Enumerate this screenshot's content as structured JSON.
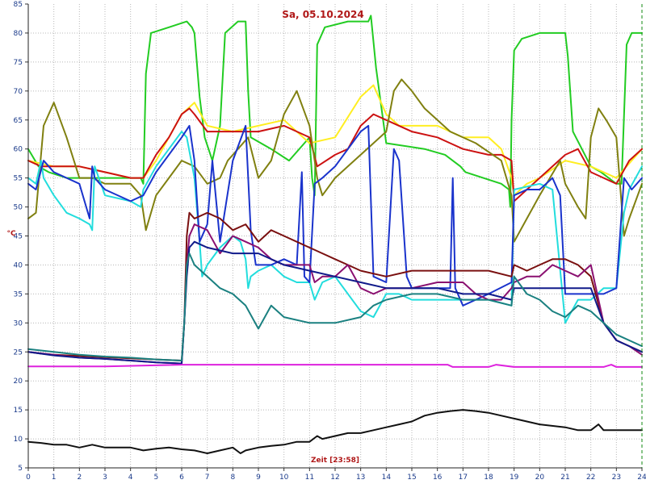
{
  "chart_data": {
    "type": "line",
    "title": "Sa, 05.10.2024",
    "xlabel": "Zeit [23:58]",
    "ylabel": "°C",
    "xlim": [
      0,
      24
    ],
    "ylim": [
      5,
      85
    ],
    "x_ticks": [
      "0",
      "1",
      "2",
      "3",
      "4",
      "5",
      "6",
      "7",
      "8",
      "9",
      "10",
      "11",
      "12",
      "13",
      "14",
      "15",
      "16",
      "17",
      "18",
      "19",
      "20",
      "21",
      "22",
      "23",
      "24"
    ],
    "y_ticks": [
      "5",
      "10",
      "15",
      "20",
      "25",
      "30",
      "35",
      "40",
      "45",
      "50",
      "55",
      "60",
      "65",
      "70",
      "75",
      "80",
      "85"
    ],
    "grid": true,
    "legend": "none",
    "series": [
      {
        "color": "#22cc22",
        "x": [
          0,
          0.4,
          0.8,
          1.5,
          2.5,
          3.5,
          4.4,
          4.5,
          4.6,
          4.8,
          5.5,
          6.2,
          6.4,
          6.5,
          6.7,
          6.9,
          7.2,
          7.5,
          7.7,
          8.2,
          8.5,
          8.6,
          8.7,
          9.5,
          10.2,
          11.0,
          11.1,
          11.2,
          11.3,
          11.6,
          12.5,
          13.3,
          13.4,
          13.6,
          14.0,
          15.5,
          16.3,
          16.9,
          17.1,
          18.5,
          18.8,
          18.85,
          18.9,
          19.0,
          19.3,
          20.0,
          20.9,
          21.0,
          21.1,
          21.3,
          22.0,
          22.4,
          23.0,
          23.2,
          23.4,
          23.6,
          24
        ],
        "y": [
          60,
          57,
          56,
          55,
          55,
          55,
          55,
          54,
          73,
          80,
          81,
          82,
          81,
          80,
          69,
          62,
          58,
          64,
          80,
          82,
          82,
          70,
          62,
          60,
          58,
          62,
          55,
          52,
          78,
          81,
          82,
          82,
          83,
          74,
          61,
          60,
          59,
          57,
          56,
          54,
          53,
          50,
          65,
          77,
          79,
          80,
          80,
          80,
          76,
          63,
          57,
          56,
          54,
          54,
          78,
          80,
          80
        ]
      },
      {
        "color": "#ffee22",
        "x": [
          0,
          1,
          2,
          3,
          4,
          4.5,
          5,
          5.5,
          6.0,
          6.5,
          7.0,
          8.0,
          9.0,
          10.0,
          11.0,
          12.0,
          13.0,
          13.5,
          14.0,
          14.5,
          16.0,
          17.0,
          18.0,
          18.5,
          18.9,
          19.0,
          19.5,
          20.0,
          21.0,
          22.0,
          23.0,
          24
        ],
        "y": [
          58,
          57,
          57,
          56,
          55,
          55,
          58,
          62,
          66,
          68,
          64,
          63,
          64,
          65,
          61,
          62,
          69,
          71,
          66,
          64,
          64,
          62,
          62,
          60,
          55,
          52,
          54,
          55,
          58,
          57,
          55,
          60
        ]
      },
      {
        "color": "#cc1111",
        "x": [
          0,
          0.5,
          1,
          2,
          3,
          4,
          4.5,
          5,
          5.5,
          6.0,
          6.3,
          6.5,
          7,
          8,
          9,
          10,
          11,
          11.3,
          12,
          12.5,
          13,
          13.5,
          14,
          15,
          16,
          16.5,
          17,
          18,
          18.5,
          18.9,
          19.0,
          19.5,
          20,
          21,
          21.5,
          22,
          23,
          23.5,
          24
        ],
        "y": [
          58,
          57,
          57,
          57,
          56,
          55,
          55,
          59,
          62,
          66,
          67,
          66,
          63,
          63,
          63,
          64,
          62,
          57,
          59,
          60,
          64,
          66,
          65,
          63,
          62,
          61,
          60,
          59,
          59,
          58,
          51,
          53,
          55,
          59,
          60,
          56,
          54,
          58,
          60
        ]
      },
      {
        "color": "#808010",
        "x": [
          0,
          0.3,
          0.6,
          1.0,
          1.5,
          2.0,
          2.5,
          3.0,
          4.0,
          4.4,
          4.6,
          5.0,
          5.5,
          6.0,
          6.5,
          7.0,
          7.5,
          7.8,
          8.2,
          8.6,
          9.0,
          9.5,
          10.0,
          10.5,
          11.0,
          11.3,
          11.5,
          12.0,
          12.5,
          13.5,
          14.0,
          14.3,
          14.6,
          15.0,
          15.5,
          16.5,
          17.5,
          18.5,
          18.9,
          19.0,
          19.5,
          20.0,
          20.4,
          20.8,
          21.0,
          21.5,
          21.8,
          22.0,
          22.3,
          22.6,
          23.0,
          23.3,
          23.5,
          24
        ],
        "y": [
          48,
          49,
          64,
          68,
          62,
          55,
          55,
          54,
          54,
          52,
          46,
          52,
          55,
          58,
          57,
          54,
          55,
          58,
          60,
          62,
          55,
          58,
          66,
          70,
          64,
          55,
          52,
          55,
          57,
          61,
          63,
          70,
          72,
          70,
          67,
          63,
          61,
          58,
          52,
          44,
          48,
          52,
          55,
          58,
          54,
          50,
          48,
          62,
          67,
          65,
          62,
          45,
          48,
          54
        ]
      },
      {
        "color": "#22dddd",
        "x": [
          0,
          0.3,
          0.4,
          0.5,
          0.6,
          1.0,
          1.5,
          2.0,
          2.4,
          2.5,
          2.6,
          3.0,
          4.0,
          4.4,
          4.5,
          5.0,
          5.5,
          6.0,
          6.2,
          6.5,
          6.7,
          6.8,
          7.0,
          7.5,
          8.0,
          8.3,
          8.5,
          8.6,
          8.7,
          9.0,
          9.5,
          10.0,
          10.5,
          11.0,
          11.2,
          11.5,
          12.0,
          13.0,
          13.5,
          14.0,
          14.5,
          15.0,
          16.0,
          17.0,
          18.0,
          18.9,
          19.0,
          20.0,
          20.5,
          21.0,
          21.5,
          22.0,
          22.5,
          23.0,
          23.3,
          23.5,
          24
        ],
        "y": [
          55,
          54,
          56,
          58,
          55,
          52,
          49,
          48,
          47,
          46,
          57,
          52,
          51,
          50,
          53,
          57,
          60,
          63,
          62,
          55,
          44,
          38,
          40,
          43,
          45,
          44,
          41,
          36,
          38,
          39,
          40,
          38,
          37,
          37,
          34,
          37,
          38,
          32,
          31,
          35,
          35,
          34,
          34,
          34,
          34,
          33,
          53,
          54,
          53,
          30,
          34,
          34,
          36,
          36,
          49,
          53,
          57
        ]
      },
      {
        "color": "#1a33cc",
        "x": [
          0,
          0.3,
          0.6,
          1.0,
          2.0,
          2.4,
          2.5,
          2.6,
          3.0,
          4.0,
          4.5,
          5.0,
          6.0,
          6.3,
          6.5,
          6.7,
          7.0,
          7.2,
          7.5,
          8.0,
          8.5,
          8.7,
          8.9,
          9.5,
          10.0,
          10.5,
          10.7,
          10.8,
          11.0,
          11.2,
          11.5,
          12.0,
          13.0,
          13.3,
          13.5,
          14.0,
          14.3,
          14.5,
          14.8,
          15.0,
          16.0,
          16.5,
          16.6,
          16.7,
          17.0,
          18.0,
          18.9,
          19.0,
          19.5,
          20.0,
          20.5,
          20.8,
          21.0,
          21.5,
          22.0,
          22.5,
          23.0,
          23.3,
          23.6,
          24
        ],
        "y": [
          54,
          53,
          58,
          56,
          54,
          48,
          57,
          55,
          53,
          51,
          52,
          56,
          62,
          64,
          58,
          44,
          47,
          58,
          44,
          58,
          64,
          46,
          40,
          40,
          41,
          40,
          56,
          38,
          37,
          54,
          55,
          57,
          63,
          64,
          38,
          37,
          60,
          58,
          38,
          36,
          36,
          36,
          55,
          36,
          33,
          35,
          37,
          52,
          53,
          53,
          55,
          52,
          35,
          35,
          35,
          35,
          36,
          55,
          53,
          55
        ]
      },
      {
        "color": "#7a1010",
        "x": [
          0,
          0.5,
          1,
          2,
          3,
          4,
          5,
          6.0,
          6.1,
          6.2,
          6.3,
          6.5,
          7.0,
          7.5,
          8.0,
          8.5,
          9.0,
          9.5,
          10.0,
          10.5,
          11.0,
          11.5,
          12.0,
          12.5,
          13.0,
          14.0,
          15.0,
          16.0,
          17.0,
          18.0,
          18.9,
          19.0,
          19.5,
          20.0,
          20.5,
          21.0,
          21.5,
          22.0,
          22.5,
          23.0,
          23.5,
          24
        ],
        "y": [
          25,
          24.7,
          24.5,
          24.3,
          24.1,
          23.9,
          23.7,
          23.5,
          30,
          45,
          49,
          48,
          49,
          48,
          46,
          47,
          44,
          46,
          45,
          44,
          43,
          42,
          41,
          40,
          39,
          38,
          39,
          39,
          39,
          39,
          38,
          40,
          39,
          40,
          41,
          41,
          40,
          38,
          30,
          27,
          26,
          25
        ]
      },
      {
        "color": "#8a1070",
        "x": [
          0,
          1,
          2,
          3,
          4,
          5,
          6.0,
          6.1,
          6.2,
          6.3,
          6.5,
          7.0,
          7.5,
          8.0,
          8.5,
          9.0,
          9.5,
          10.0,
          10.5,
          11.0,
          11.2,
          11.5,
          12.0,
          12.5,
          13.0,
          13.5,
          14.0,
          15.0,
          16.0,
          17.0,
          17.5,
          18.0,
          18.5,
          18.9,
          19.0,
          19.5,
          20.0,
          20.5,
          21.0,
          21.5,
          22.0,
          22.5,
          23.0,
          23.5,
          24
        ],
        "y": [
          25,
          24.5,
          24,
          23.8,
          23.5,
          23.2,
          23,
          30,
          40,
          45,
          47,
          46,
          42,
          45,
          44,
          43,
          41,
          40,
          40,
          40,
          37,
          38,
          38,
          40,
          36,
          35,
          36,
          36,
          37,
          37,
          35,
          34,
          34,
          36,
          37,
          38,
          38,
          40,
          39,
          38,
          40,
          30,
          27,
          26,
          24.5
        ]
      },
      {
        "color": "#101a8a",
        "x": [
          0,
          1,
          2,
          3,
          4,
          5,
          6.0,
          6.1,
          6.2,
          6.3,
          6.5,
          7.0,
          8.0,
          9.0,
          10.0,
          11.0,
          12.0,
          13.0,
          14.0,
          15.0,
          16.0,
          17.0,
          18.0,
          18.9,
          19.0,
          20.0,
          21.0,
          22.0,
          22.5,
          23.0,
          23.5,
          24
        ],
        "y": [
          25,
          24.4,
          24,
          23.8,
          23.5,
          23.2,
          23,
          30,
          38,
          43,
          44,
          43,
          42,
          42,
          40,
          39,
          38,
          37,
          36,
          36,
          36,
          35,
          35,
          34,
          36,
          36,
          36,
          36,
          30,
          27,
          26,
          25
        ]
      },
      {
        "color": "#1a8080",
        "x": [
          0,
          1,
          2,
          3,
          4,
          5,
          6.0,
          6.1,
          6.2,
          6.3,
          6.5,
          7.0,
          7.5,
          8.0,
          8.5,
          9.0,
          9.5,
          10.0,
          11.0,
          12.0,
          13.0,
          13.5,
          14.0,
          15.0,
          16.0,
          17.0,
          18.0,
          18.9,
          19.0,
          19.5,
          20.0,
          20.5,
          21.0,
          21.5,
          22.0,
          23.0,
          24
        ],
        "y": [
          25.5,
          25,
          24.5,
          24.2,
          24,
          23.7,
          23.5,
          30,
          40,
          42,
          40,
          38,
          36,
          35,
          33,
          29,
          33,
          31,
          30,
          30,
          31,
          33,
          34,
          35,
          35,
          34,
          34,
          33,
          38,
          35,
          34,
          32,
          31,
          33,
          32,
          28,
          26
        ]
      },
      {
        "color": "#dd22dd",
        "x": [
          0,
          3,
          6,
          9,
          12,
          15,
          16.4,
          16.6,
          17.5,
          18,
          18.3,
          19,
          21,
          22.5,
          22.8,
          23,
          23.5,
          24
        ],
        "y": [
          22.5,
          22.5,
          22.8,
          22.8,
          22.8,
          22.8,
          22.8,
          22.4,
          22.4,
          22.4,
          22.8,
          22.4,
          22.4,
          22.4,
          22.8,
          22.4,
          22.4,
          22.4
        ]
      },
      {
        "color": "#111111",
        "x": [
          0,
          0.5,
          1,
          1.5,
          2,
          2.5,
          3,
          3.5,
          4,
          4.5,
          5,
          5.5,
          6,
          6.5,
          7,
          7.5,
          8,
          8.3,
          8.5,
          9,
          9.5,
          10,
          10.5,
          11,
          11.3,
          11.5,
          12,
          12.5,
          13,
          13.5,
          14,
          14.5,
          15,
          15.5,
          16,
          16.5,
          17,
          17.5,
          18,
          19,
          20,
          21,
          21.5,
          22,
          22.3,
          22.5,
          23,
          23.5,
          24
        ],
        "y": [
          9.5,
          9.3,
          9,
          9,
          8.5,
          9,
          8.5,
          8.5,
          8.5,
          8,
          8.3,
          8.5,
          8.2,
          8,
          7.5,
          8,
          8.5,
          7.5,
          8,
          8.5,
          8.8,
          9,
          9.5,
          9.5,
          10.5,
          10,
          10.5,
          11,
          11,
          11.5,
          12,
          12.5,
          13,
          14,
          14.5,
          14.8,
          15,
          14.8,
          14.5,
          13.5,
          12.5,
          12,
          11.5,
          11.5,
          12.5,
          11.5,
          11.5,
          11.5,
          11.5
        ]
      }
    ]
  }
}
